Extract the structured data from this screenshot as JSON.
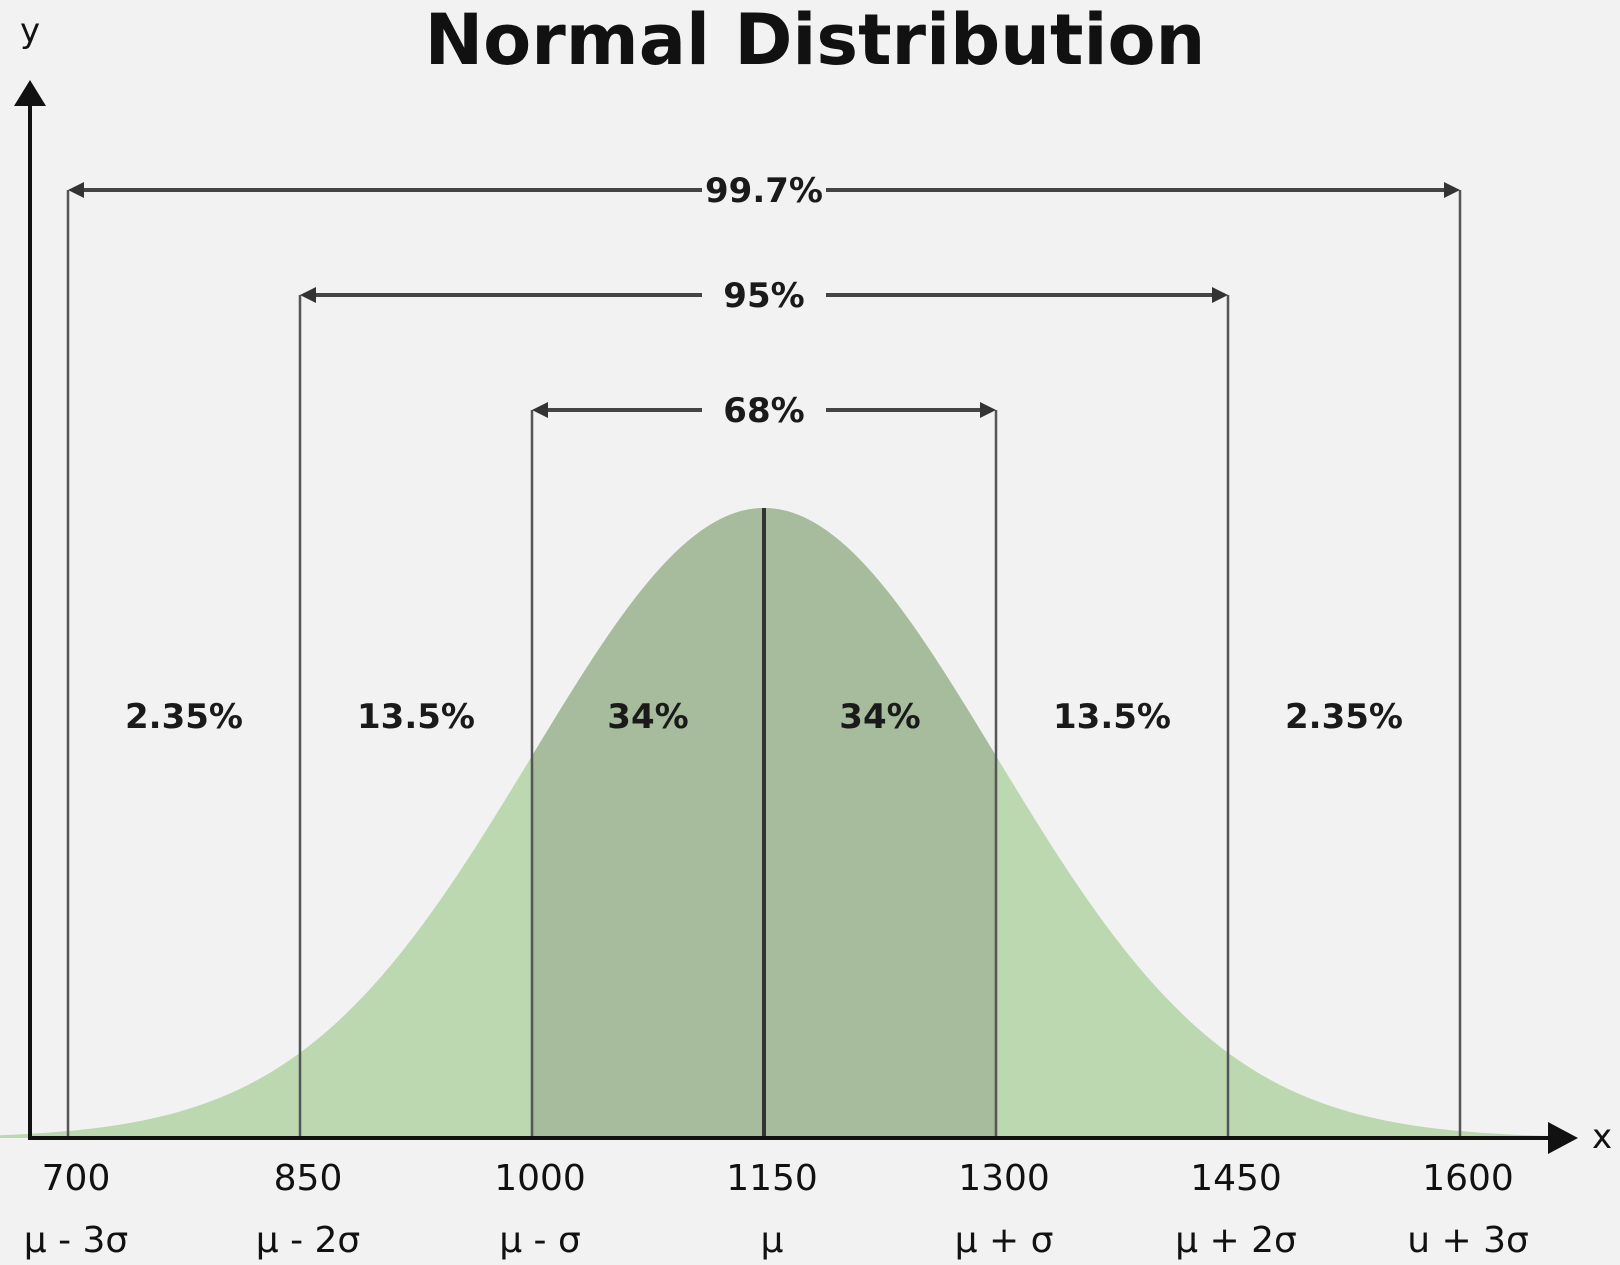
{
  "chart_data": {
    "type": "area",
    "title": "Normal Distribution",
    "xlabel": "x",
    "ylabel": "y",
    "mean": 1150,
    "sd": 150,
    "xlim": [
      700,
      1600
    ],
    "ticks": [
      {
        "value": 700,
        "label": "700",
        "sigma": "μ - 3σ"
      },
      {
        "value": 850,
        "label": "850",
        "sigma": "μ - 2σ"
      },
      {
        "value": 1000,
        "label": "1000",
        "sigma": "μ - σ"
      },
      {
        "value": 1150,
        "label": "1150",
        "sigma": "μ"
      },
      {
        "value": 1300,
        "label": "1300",
        "sigma": "μ + σ"
      },
      {
        "value": 1450,
        "label": "1450",
        "sigma": "μ + 2σ"
      },
      {
        "value": 1600,
        "label": "1600",
        "sigma": "u + 3σ"
      }
    ],
    "regions": [
      {
        "from": 700,
        "to": 850,
        "label": "2.35%"
      },
      {
        "from": 850,
        "to": 1000,
        "label": "13.5%"
      },
      {
        "from": 1000,
        "to": 1150,
        "label": "34%"
      },
      {
        "from": 1150,
        "to": 1300,
        "label": "34%"
      },
      {
        "from": 1300,
        "to": 1450,
        "label": "13.5%"
      },
      {
        "from": 1450,
        "to": 1600,
        "label": "2.35%"
      }
    ],
    "ranges": [
      {
        "from": 700,
        "to": 1600,
        "label": "99.7%"
      },
      {
        "from": 850,
        "to": 1450,
        "label": "95%"
      },
      {
        "from": 1000,
        "to": 1300,
        "label": "68%"
      }
    ],
    "colors": {
      "outer_fill": "#bcd8b0",
      "inner_fill": "#a7bc9d",
      "background": "#f2f2f2",
      "line": "#555555"
    }
  }
}
